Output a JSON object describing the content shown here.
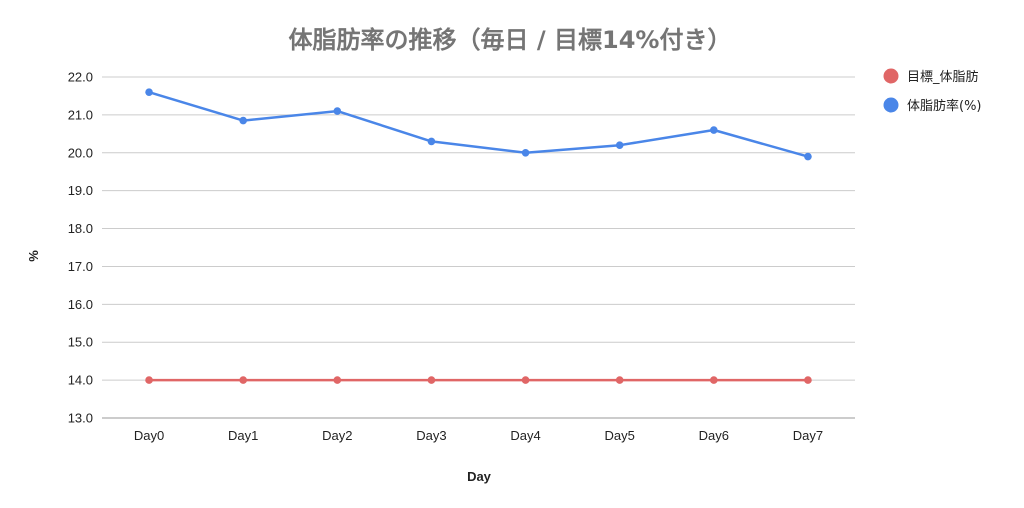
{
  "chart_data": {
    "type": "line",
    "title": "体脂肪率の推移（毎日 / 目標14%付き）",
    "xlabel": "Day",
    "ylabel": "%",
    "categories": [
      "Day0",
      "Day1",
      "Day2",
      "Day3",
      "Day4",
      "Day5",
      "Day6",
      "Day7"
    ],
    "ylim": [
      13.0,
      22.0
    ],
    "yticks": [
      "13.0",
      "14.0",
      "15.0",
      "16.0",
      "17.0",
      "18.0",
      "19.0",
      "20.0",
      "21.0",
      "22.0"
    ],
    "grid": true,
    "legend_position": "right",
    "series": [
      {
        "name": "目標_体脂肪",
        "color": "#e06666",
        "values": [
          14.0,
          14.0,
          14.0,
          14.0,
          14.0,
          14.0,
          14.0,
          14.0
        ]
      },
      {
        "name": "体脂肪率(%)",
        "color": "#4a86e8",
        "values": [
          21.6,
          20.85,
          21.1,
          20.3,
          20.0,
          20.2,
          20.6,
          19.9
        ]
      }
    ]
  }
}
